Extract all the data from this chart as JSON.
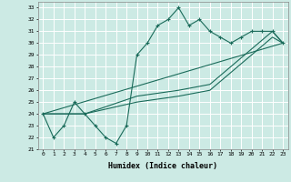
{
  "title": "",
  "xlabel": "Humidex (Indice chaleur)",
  "bg_color": "#cceae4",
  "line_color": "#1a6b5a",
  "grid_color": "#ffffff",
  "xlim": [
    -0.5,
    23.5
  ],
  "ylim": [
    21,
    33.5
  ],
  "yticks": [
    21,
    22,
    23,
    24,
    25,
    26,
    27,
    28,
    29,
    30,
    31,
    32,
    33
  ],
  "xticks": [
    0,
    1,
    2,
    3,
    4,
    5,
    6,
    7,
    8,
    9,
    10,
    11,
    12,
    13,
    14,
    15,
    16,
    17,
    18,
    19,
    20,
    21,
    22,
    23
  ],
  "line_main": {
    "x": [
      0,
      1,
      2,
      3,
      4,
      5,
      6,
      7,
      8,
      9,
      10,
      11,
      12,
      13,
      14,
      15,
      16,
      17,
      18,
      19,
      20,
      21,
      22,
      23
    ],
    "y": [
      24,
      22,
      23,
      25,
      24,
      23,
      22,
      21.5,
      23,
      29,
      30,
      31.5,
      32,
      33,
      31.5,
      32,
      31,
      30.5,
      30,
      30.5,
      31,
      31,
      31,
      30
    ]
  },
  "line_a": {
    "x": [
      0,
      4,
      9,
      13,
      16,
      22,
      23
    ],
    "y": [
      24,
      24,
      25.5,
      26,
      26.5,
      31,
      30
    ]
  },
  "line_b": {
    "x": [
      0,
      4,
      9,
      13,
      16,
      22,
      23
    ],
    "y": [
      24,
      24,
      25,
      25.5,
      26,
      30.5,
      30
    ]
  },
  "line_c": {
    "x": [
      0,
      23
    ],
    "y": [
      24,
      30
    ]
  }
}
